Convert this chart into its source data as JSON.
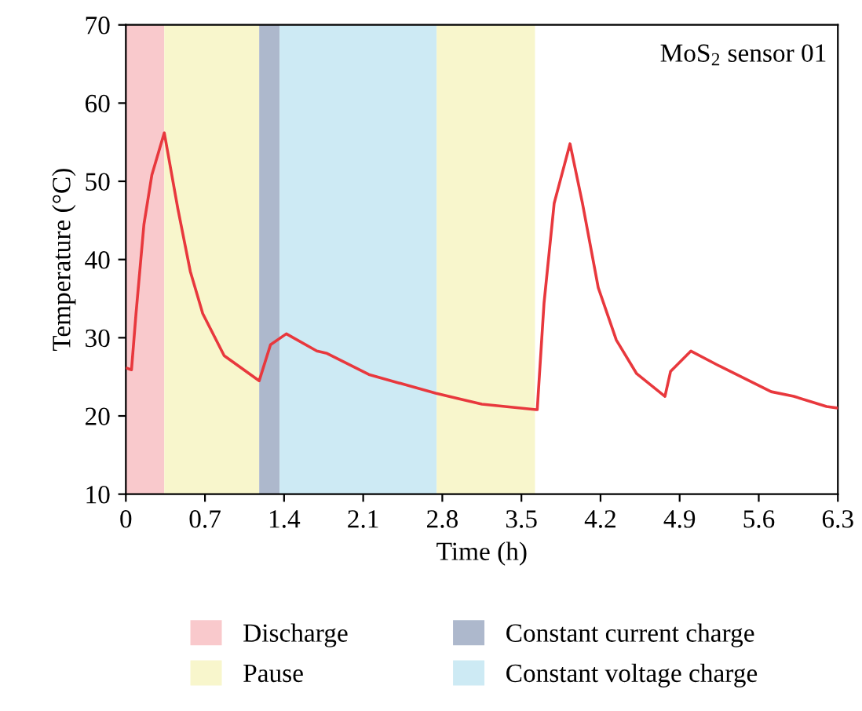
{
  "chart_data": {
    "type": "line",
    "xlabel": "Time (h)",
    "ylabel": "Temperature (°C)",
    "annotations": [
      "MoS$_{2}$ sensor 01"
    ],
    "xlim": [
      0,
      6.3
    ],
    "xticks": [
      0,
      0.7,
      1.4,
      2.1,
      2.8,
      3.5,
      4.2,
      4.9,
      5.6,
      6.3
    ],
    "ylim": [
      10,
      70
    ],
    "yticks": [
      10,
      20,
      30,
      40,
      50,
      60,
      70
    ],
    "grid": false,
    "legend": "bottom",
    "marker": "none",
    "line_style": "solid",
    "bands": [
      {
        "axis": "x",
        "from": 0,
        "to": 0.34,
        "label": "Discharge",
        "color": "#f9c9cc"
      },
      {
        "axis": "x",
        "from": 0.34,
        "to": 1.18,
        "label": "Pause",
        "color": "#f8f6cc"
      },
      {
        "axis": "x",
        "from": 1.18,
        "to": 1.36,
        "label": "Constant current charge",
        "color": "#adb8cc"
      },
      {
        "axis": "x",
        "from": 1.36,
        "to": 2.75,
        "label": "Constant voltage charge",
        "color": "#cdeaf4"
      },
      {
        "axis": "x",
        "from": 2.75,
        "to": 3.62,
        "label": null,
        "color": "#f8f6cc"
      }
    ],
    "series": [
      {
        "color": "#e8383d",
        "x": [
          0.01,
          0.05,
          0.09,
          0.16,
          0.23,
          0.34,
          0.46,
          0.57,
          0.68,
          0.87,
          1.18,
          1.28,
          1.42,
          1.69,
          1.78,
          2.15,
          2.74,
          3.15,
          3.63,
          3.64,
          3.7,
          3.79,
          3.93,
          4.04,
          4.18,
          4.34,
          4.52,
          4.77,
          4.82,
          5.0,
          5.25,
          5.71,
          5.91,
          6.2,
          6.3
        ],
        "values": [
          26.1,
          25.9,
          33.1,
          44.5,
          50.8,
          56.2,
          46.5,
          38.5,
          33.1,
          27.7,
          24.5,
          29.1,
          30.5,
          28.3,
          28.0,
          25.3,
          22.9,
          21.5,
          20.8,
          20.8,
          34.4,
          47.2,
          54.8,
          47.2,
          36.4,
          29.7,
          25.4,
          22.5,
          25.7,
          28.3,
          26.4,
          23.1,
          22.5,
          21.2,
          21.0
        ]
      }
    ]
  }
}
